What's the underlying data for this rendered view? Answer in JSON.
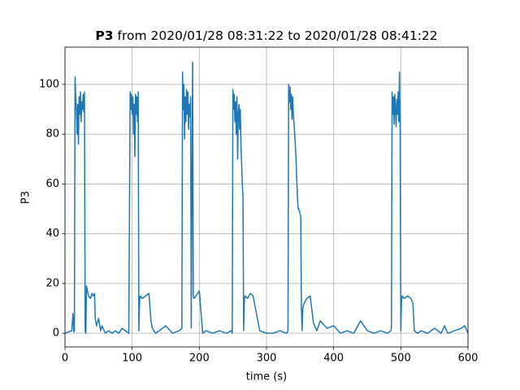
{
  "chart_data": {
    "type": "line",
    "title_prefix": "P3",
    "title": "from 2020/01/28 08:31:22 to 2020/01/28 08:41:22",
    "xlabel": "time (s)",
    "ylabel": "P3",
    "xlim": [
      0,
      600
    ],
    "xticks": [
      0,
      100,
      200,
      300,
      400,
      500,
      600
    ],
    "ylim": [
      -5.5,
      115
    ],
    "yticks": [
      0,
      20,
      40,
      60,
      80,
      100
    ],
    "grid": true,
    "series": [
      {
        "color": "#1f77b4",
        "x": [
          0,
          5,
          10,
          12,
          13,
          14,
          15,
          16,
          17,
          18,
          19,
          20,
          21,
          22,
          23,
          24,
          25,
          26,
          27,
          28,
          29,
          30,
          31,
          32,
          35,
          38,
          40,
          42,
          44,
          45,
          47,
          50,
          53,
          55,
          60,
          65,
          70,
          75,
          80,
          85,
          90,
          95,
          97,
          98,
          99,
          100,
          101,
          102,
          103,
          104,
          105,
          106,
          107,
          108,
          109,
          110,
          111,
          112,
          115,
          120,
          125,
          128,
          130,
          135,
          140,
          150,
          160,
          170,
          174,
          175,
          176,
          177,
          178,
          179,
          180,
          181,
          182,
          183,
          184,
          185,
          186,
          187,
          188,
          189,
          190,
          191,
          192,
          195,
          200,
          205,
          210,
          220,
          230,
          240,
          248,
          249,
          250,
          251,
          252,
          253,
          254,
          255,
          256,
          257,
          258,
          259,
          260,
          261,
          262,
          263,
          264,
          265,
          266,
          267,
          268,
          272,
          276,
          280,
          285,
          290,
          300,
          310,
          320,
          330,
          332,
          333,
          334,
          335,
          336,
          337,
          338,
          339,
          340,
          341,
          342,
          343,
          344,
          345,
          346,
          347,
          348,
          349,
          350,
          351,
          352,
          353,
          354,
          356,
          360,
          365,
          370,
          375,
          380,
          390,
          400,
          410,
          420,
          430,
          440,
          450,
          460,
          470,
          480,
          485,
          486,
          487,
          488,
          489,
          490,
          491,
          492,
          493,
          494,
          495,
          496,
          497,
          498,
          499,
          500,
          501,
          502,
          505,
          510,
          515,
          518,
          520,
          525,
          530,
          540,
          550,
          560,
          565,
          570,
          580,
          590,
          595,
          600
        ],
        "values": [
          0,
          0.5,
          1,
          8,
          0.5,
          1,
          103,
          95,
          90,
          80,
          92,
          76,
          95,
          88,
          97,
          85,
          93,
          90,
          96,
          89,
          97,
          1,
          0,
          19,
          15,
          14,
          16,
          15,
          16,
          6,
          3,
          6,
          1,
          3,
          0,
          1,
          0,
          1,
          0,
          2,
          1,
          0,
          97,
          90,
          96,
          88,
          95,
          80,
          92,
          71,
          96,
          88,
          95,
          85,
          97,
          1,
          13,
          15,
          14,
          15,
          16,
          5,
          2,
          0,
          1,
          3,
          0,
          1,
          2,
          105,
          90,
          100,
          78,
          95,
          85,
          98,
          88,
          97,
          82,
          92,
          87,
          95,
          2,
          60,
          109,
          15,
          14,
          15,
          17,
          0,
          1,
          0,
          1,
          0,
          1,
          0,
          98,
          90,
          96,
          85,
          93,
          80,
          95,
          70,
          88,
          92,
          82,
          90,
          75,
          68,
          60,
          55,
          1,
          13,
          15,
          14,
          16,
          15,
          8,
          1,
          0,
          0,
          1,
          0,
          1,
          100,
          93,
          99,
          90,
          96,
          86,
          95,
          88,
          84,
          80,
          75,
          70,
          62,
          55,
          50,
          50,
          49,
          48,
          47,
          10,
          1,
          10,
          12,
          14,
          15,
          4,
          1,
          5,
          2,
          3,
          0,
          1,
          0,
          5,
          1,
          0,
          1,
          0,
          1,
          2,
          97,
          88,
          95,
          84,
          96,
          90,
          83,
          94,
          88,
          97,
          85,
          105,
          80,
          1,
          13,
          15,
          14,
          15,
          14,
          12,
          1,
          0,
          1,
          0,
          2,
          0,
          3,
          0,
          1,
          2,
          3,
          0
        ]
      }
    ]
  }
}
